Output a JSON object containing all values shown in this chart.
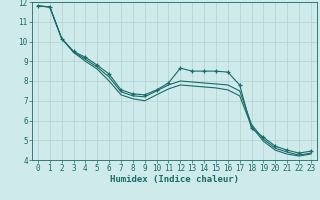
{
  "xlabel": "Humidex (Indice chaleur)",
  "bg_color": "#ceeaea",
  "grid_color": "#b8d4d4",
  "line_color": "#1a6b6b",
  "xlim": [
    -0.5,
    23.5
  ],
  "ylim": [
    4,
    12
  ],
  "xticks": [
    0,
    1,
    2,
    3,
    4,
    5,
    6,
    7,
    8,
    9,
    10,
    11,
    12,
    13,
    14,
    15,
    16,
    17,
    18,
    19,
    20,
    21,
    22,
    23
  ],
  "yticks": [
    4,
    5,
    6,
    7,
    8,
    9,
    10,
    11,
    12
  ],
  "line1_x": [
    0,
    1,
    2,
    3,
    4,
    5,
    6,
    7,
    8,
    9,
    10,
    11,
    12,
    13,
    14,
    15,
    16,
    17,
    18,
    19,
    20,
    21,
    22,
    23
  ],
  "line1_y": [
    11.8,
    11.75,
    10.15,
    9.5,
    9.2,
    8.8,
    8.35,
    7.55,
    7.35,
    7.3,
    7.55,
    7.9,
    8.65,
    8.5,
    8.5,
    8.5,
    8.45,
    7.8,
    5.6,
    5.15,
    4.7,
    4.5,
    4.35,
    4.45
  ],
  "line2_x": [
    0,
    1,
    2,
    3,
    4,
    5,
    6,
    7,
    8,
    9,
    10,
    11,
    12,
    13,
    14,
    15,
    16,
    17,
    18,
    19,
    20,
    21,
    22,
    23
  ],
  "line2_y": [
    11.8,
    11.75,
    10.15,
    9.48,
    9.1,
    8.7,
    8.2,
    7.45,
    7.25,
    7.2,
    7.5,
    7.8,
    8.0,
    7.95,
    7.9,
    7.85,
    7.8,
    7.5,
    5.8,
    5.05,
    4.6,
    4.4,
    4.25,
    4.35
  ],
  "line3_x": [
    0,
    1,
    2,
    3,
    4,
    5,
    6,
    7,
    8,
    9,
    10,
    11,
    12,
    13,
    14,
    15,
    16,
    17,
    18,
    19,
    20,
    21,
    22,
    23
  ],
  "line3_y": [
    11.8,
    11.75,
    10.15,
    9.45,
    9.0,
    8.6,
    8.0,
    7.3,
    7.1,
    7.0,
    7.3,
    7.6,
    7.8,
    7.75,
    7.7,
    7.65,
    7.55,
    7.25,
    5.7,
    4.95,
    4.5,
    4.3,
    4.2,
    4.3
  ],
  "tick_fontsize": 5.5,
  "xlabel_fontsize": 6.5
}
